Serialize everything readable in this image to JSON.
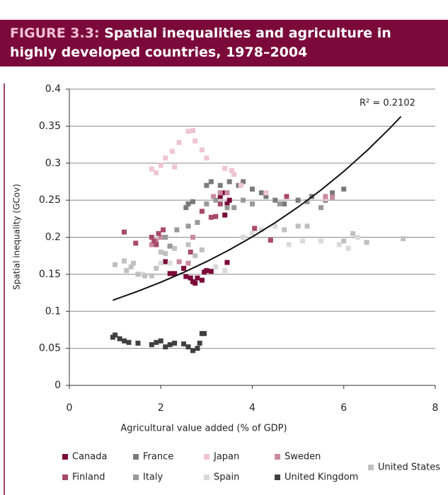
{
  "chart_data": {
    "type": "scatter",
    "figure_label": "FIGURE 3.3:",
    "title": "Spatial inequalities and agriculture in highly developed countries, 1978–2004",
    "x_label": "Agricultural value added (% of GDP)",
    "y_label": "Spatial inequality (GCov)",
    "xlim": [
      0,
      8
    ],
    "xticks": [
      0,
      2,
      4,
      6,
      8
    ],
    "ylim": [
      0,
      0.4
    ],
    "yticks": [
      0,
      0.05,
      0.1,
      0.15,
      0.2,
      0.25,
      0.3,
      0.35,
      0.4
    ],
    "grid": true,
    "legend": "bottom",
    "series": [
      {
        "name": "Canada",
        "color": "#7b0a3a",
        "x": [
          2.1,
          2.2,
          2.3,
          2.5,
          2.55,
          2.65,
          2.7,
          2.75,
          2.8,
          2.9,
          2.95,
          3.0,
          3.1,
          3.45,
          3.4,
          3.45,
          3.5,
          3.3,
          3.35
        ],
        "values": [
          0.167,
          0.151,
          0.151,
          0.158,
          0.147,
          0.145,
          0.14,
          0.138,
          0.145,
          0.142,
          0.153,
          0.155,
          0.154,
          0.166,
          0.23,
          0.245,
          0.25,
          0.255,
          0.26
        ]
      },
      {
        "name": "France",
        "color": "#7a7a7a",
        "x": [
          2.55,
          2.6,
          2.7,
          3.0,
          3.1,
          3.3,
          3.5,
          3.7,
          3.8,
          4.0,
          4.2,
          4.3,
          4.5,
          4.7,
          5.0,
          5.3,
          5.6,
          6.0,
          5.75
        ],
        "values": [
          0.24,
          0.245,
          0.248,
          0.27,
          0.275,
          0.27,
          0.275,
          0.27,
          0.275,
          0.265,
          0.26,
          0.255,
          0.25,
          0.245,
          0.25,
          0.255,
          0.25,
          0.265,
          0.26
        ]
      },
      {
        "name": "Japan",
        "color": "#f0c4d4",
        "x": [
          1.8,
          1.9,
          2.0,
          2.1,
          2.25,
          2.4,
          2.6,
          2.7,
          2.75,
          2.9,
          3.0,
          3.4,
          3.55,
          3.6,
          3.75,
          4.3,
          5.6,
          2.3
        ],
        "values": [
          0.292,
          0.287,
          0.297,
          0.307,
          0.316,
          0.328,
          0.343,
          0.344,
          0.33,
          0.318,
          0.307,
          0.293,
          0.29,
          0.285,
          0.27,
          0.26,
          0.252,
          0.295
        ]
      },
      {
        "name": "Sweden",
        "color": "#c98aa0",
        "x": [
          1.8,
          1.9,
          2.0,
          2.2,
          2.4,
          2.6,
          2.7,
          3.15,
          3.3,
          3.45,
          5.6,
          5.75
        ],
        "values": [
          0.19,
          0.195,
          0.2,
          0.188,
          0.167,
          0.165,
          0.2,
          0.255,
          0.26,
          0.26,
          0.255,
          0.254
        ]
      },
      {
        "name": "Finland",
        "color": "#a84a6a",
        "x": [
          1.2,
          1.45,
          1.8,
          1.85,
          1.9,
          1.95,
          2.05,
          2.9,
          3.1,
          3.2,
          3.3,
          4.05,
          4.4,
          4.75,
          2.65
        ],
        "values": [
          0.207,
          0.192,
          0.2,
          0.195,
          0.19,
          0.205,
          0.21,
          0.235,
          0.227,
          0.228,
          0.245,
          0.212,
          0.196,
          0.255,
          0.18
        ]
      },
      {
        "name": "Italy",
        "color": "#999999",
        "x": [
          2.1,
          2.35,
          2.6,
          2.8,
          3.0,
          3.2,
          3.45,
          3.6,
          3.8,
          4.0,
          4.6,
          5.2,
          5.5,
          2.2
        ],
        "values": [
          0.2,
          0.21,
          0.215,
          0.22,
          0.245,
          0.25,
          0.24,
          0.24,
          0.25,
          0.245,
          0.245,
          0.248,
          0.24,
          0.188
        ]
      },
      {
        "name": "Spain",
        "color": "#d9d9d9",
        "x": [
          1.6,
          2.0,
          2.2,
          3.2,
          3.4,
          3.8,
          4.0,
          4.2,
          4.5,
          4.8,
          5.1,
          5.5,
          5.9,
          6.1,
          6.3
        ],
        "values": [
          0.15,
          0.165,
          0.165,
          0.16,
          0.155,
          0.2,
          0.205,
          0.21,
          0.215,
          0.19,
          0.195,
          0.195,
          0.19,
          0.185,
          0.2
        ]
      },
      {
        "name": "United Kingdom",
        "color": "#404040",
        "x": [
          0.95,
          1.0,
          1.1,
          1.2,
          1.3,
          1.5,
          1.8,
          1.9,
          2.0,
          2.1,
          2.3,
          2.5,
          2.6,
          2.7,
          2.8,
          2.85,
          2.9,
          2.95,
          2.2
        ],
        "values": [
          0.065,
          0.068,
          0.063,
          0.06,
          0.058,
          0.057,
          0.055,
          0.058,
          0.06,
          0.052,
          0.057,
          0.056,
          0.052,
          0.047,
          0.05,
          0.057,
          0.07,
          0.07,
          0.055
        ]
      },
      {
        "name": "United States",
        "color": "#c0c0c0",
        "x": [
          1.0,
          1.2,
          1.25,
          1.35,
          1.4,
          1.5,
          1.65,
          1.8,
          1.9,
          2.0,
          2.1,
          2.3,
          2.6,
          2.75,
          2.9,
          4.7,
          5.0,
          5.2,
          6.2,
          6.5,
          7.3,
          6.0
        ],
        "values": [
          0.163,
          0.168,
          0.155,
          0.16,
          0.165,
          0.15,
          0.148,
          0.148,
          0.158,
          0.18,
          0.178,
          0.185,
          0.19,
          0.175,
          0.183,
          0.21,
          0.215,
          0.215,
          0.205,
          0.193,
          0.198,
          0.195
        ]
      }
    ],
    "trendline": {
      "label": "R² = 0.2102",
      "color": "#111111",
      "x": [
        0.95,
        1.5,
        2,
        2.5,
        3,
        3.5,
        4,
        4.5,
        5,
        5.5,
        6,
        6.5,
        7,
        7.25
      ],
      "values": [
        0.115,
        0.1271,
        0.1393,
        0.1526,
        0.1671,
        0.1831,
        0.2006,
        0.2197,
        0.2407,
        0.2637,
        0.2889,
        0.3165,
        0.3467,
        0.3629
      ]
    }
  }
}
